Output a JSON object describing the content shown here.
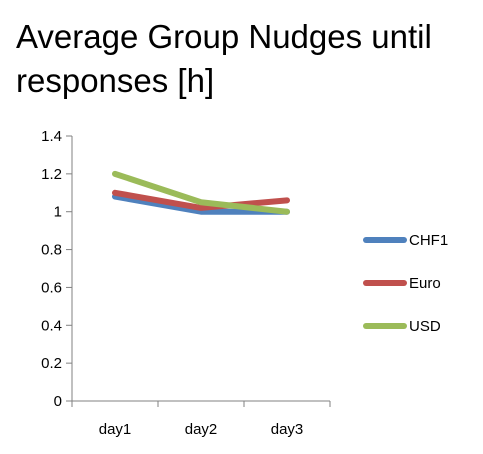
{
  "chart_data": {
    "type": "line",
    "title_lines": [
      "Average Group Nudges until",
      "responses [h]"
    ],
    "categories": [
      "day1",
      "day2",
      "day3"
    ],
    "y_ticks": [
      "0",
      "0.2",
      "0.4",
      "0.6",
      "0.8",
      "1",
      "1.2",
      "1.4"
    ],
    "ylim": [
      0,
      1.4
    ],
    "grid": false,
    "legend_position": "right",
    "series": [
      {
        "name": "CHF1",
        "color": "#4f81bd",
        "values": [
          1.08,
          1.0,
          1.0
        ]
      },
      {
        "name": "Euro",
        "color": "#c0504d",
        "values": [
          1.1,
          1.02,
          1.06
        ]
      },
      {
        "name": "USD",
        "color": "#9bbb59",
        "values": [
          1.2,
          1.05,
          1.0
        ]
      }
    ]
  }
}
